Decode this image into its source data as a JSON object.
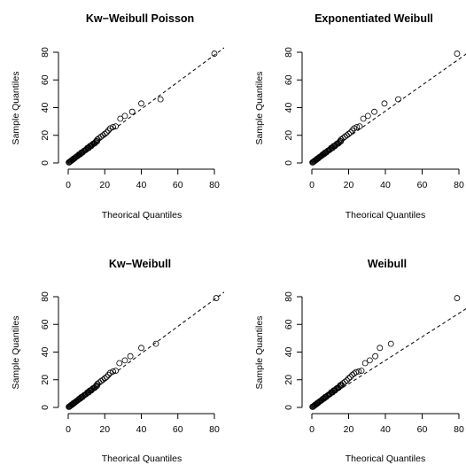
{
  "figure": {
    "panels": [
      {
        "title": "Kw−Weibull Poisson",
        "xlabel": "Theorical Quantiles",
        "ylabel": "Sample Quantiles"
      },
      {
        "title": "Exponentiated Weibull",
        "xlabel": "Theorical Quantiles",
        "ylabel": "Sample Quantiles"
      },
      {
        "title": "Kw−Weibull",
        "xlabel": "Theorical Quantiles",
        "ylabel": "Sample Quantiles"
      },
      {
        "title": "Weibull",
        "xlabel": "Theorical Quantiles",
        "ylabel": "Sample Quantiles"
      }
    ]
  },
  "chart_data": [
    {
      "type": "scatter",
      "title": "Kw−Weibull Poisson",
      "xlabel": "Theorical Quantiles",
      "ylabel": "Sample Quantiles",
      "xlim": [
        0,
        80
      ],
      "ylim": [
        0,
        80
      ],
      "xticks": [
        0,
        20,
        40,
        60,
        80
      ],
      "yticks": [
        0,
        20,
        40,
        60,
        80
      ],
      "reference_line": {
        "style": "dashed",
        "points": [
          [
            0,
            0
          ],
          [
            80,
            78
          ]
        ]
      },
      "tail_points": [
        [
          16,
          17
        ],
        [
          17,
          18
        ],
        [
          18,
          19
        ],
        [
          19,
          20
        ],
        [
          20,
          21
        ],
        [
          21,
          22
        ],
        [
          22,
          23.5
        ],
        [
          23,
          25
        ],
        [
          24.5,
          26
        ],
        [
          26,
          26.5
        ],
        [
          28.5,
          32
        ],
        [
          31,
          34
        ],
        [
          35,
          37
        ],
        [
          40,
          43
        ],
        [
          50.5,
          46
        ],
        [
          80,
          79
        ]
      ]
    },
    {
      "type": "scatter",
      "title": "Exponentiated Weibull",
      "xlabel": "Theorical Quantiles",
      "ylabel": "Sample Quantiles",
      "xlim": [
        0,
        80
      ],
      "ylim": [
        0,
        80
      ],
      "xticks": [
        0,
        20,
        40,
        60,
        80
      ],
      "yticks": [
        0,
        20,
        40,
        60,
        80
      ],
      "reference_line": {
        "style": "dashed",
        "points": [
          [
            0,
            0
          ],
          [
            80,
            75
          ]
        ]
      },
      "tail_points": [
        [
          16,
          17
        ],
        [
          17,
          18
        ],
        [
          18,
          19
        ],
        [
          19,
          20
        ],
        [
          20,
          21
        ],
        [
          21,
          22
        ],
        [
          22,
          23.5
        ],
        [
          23,
          25
        ],
        [
          24.5,
          26
        ],
        [
          26,
          26.5
        ],
        [
          28,
          32
        ],
        [
          30.5,
          34
        ],
        [
          34,
          37
        ],
        [
          39.5,
          43
        ],
        [
          47,
          46
        ],
        [
          79,
          79
        ]
      ]
    },
    {
      "type": "scatter",
      "title": "Kw−Weibull",
      "xlabel": "Theorical Quantiles",
      "ylabel": "Sample Quantiles",
      "xlim": [
        0,
        80
      ],
      "ylim": [
        0,
        80
      ],
      "xticks": [
        0,
        20,
        40,
        60,
        80
      ],
      "yticks": [
        0,
        20,
        40,
        60,
        80
      ],
      "reference_line": {
        "style": "dashed",
        "points": [
          [
            0,
            0
          ],
          [
            82,
            80
          ]
        ]
      },
      "tail_points": [
        [
          16,
          17
        ],
        [
          17,
          18
        ],
        [
          18,
          19
        ],
        [
          19,
          20
        ],
        [
          20,
          21
        ],
        [
          21,
          22
        ],
        [
          22,
          23.5
        ],
        [
          23,
          25
        ],
        [
          24.5,
          26
        ],
        [
          26,
          26.5
        ],
        [
          28,
          32
        ],
        [
          31,
          34
        ],
        [
          34,
          37
        ],
        [
          40,
          43
        ],
        [
          48,
          46
        ],
        [
          81,
          79
        ]
      ]
    },
    {
      "type": "scatter",
      "title": "Weibull",
      "xlabel": "Theorical Quantiles",
      "ylabel": "Sample Quantiles",
      "xlim": [
        0,
        80
      ],
      "ylim": [
        0,
        80
      ],
      "xticks": [
        0,
        20,
        40,
        60,
        80
      ],
      "yticks": [
        0,
        20,
        40,
        60,
        80
      ],
      "reference_line": {
        "style": "dashed",
        "points": [
          [
            0,
            0
          ],
          [
            80,
            68
          ]
        ]
      },
      "tail_points": [
        [
          16,
          16.5
        ],
        [
          17,
          17.5
        ],
        [
          18,
          18.5
        ],
        [
          19,
          19.5
        ],
        [
          20,
          21
        ],
        [
          21,
          22
        ],
        [
          22,
          23.5
        ],
        [
          23,
          24.5
        ],
        [
          24,
          25.5
        ],
        [
          25.5,
          26
        ],
        [
          27,
          26.5
        ],
        [
          29,
          32
        ],
        [
          31.5,
          34
        ],
        [
          34.5,
          37
        ],
        [
          37,
          43
        ],
        [
          43,
          46
        ],
        [
          79,
          79
        ]
      ]
    }
  ]
}
